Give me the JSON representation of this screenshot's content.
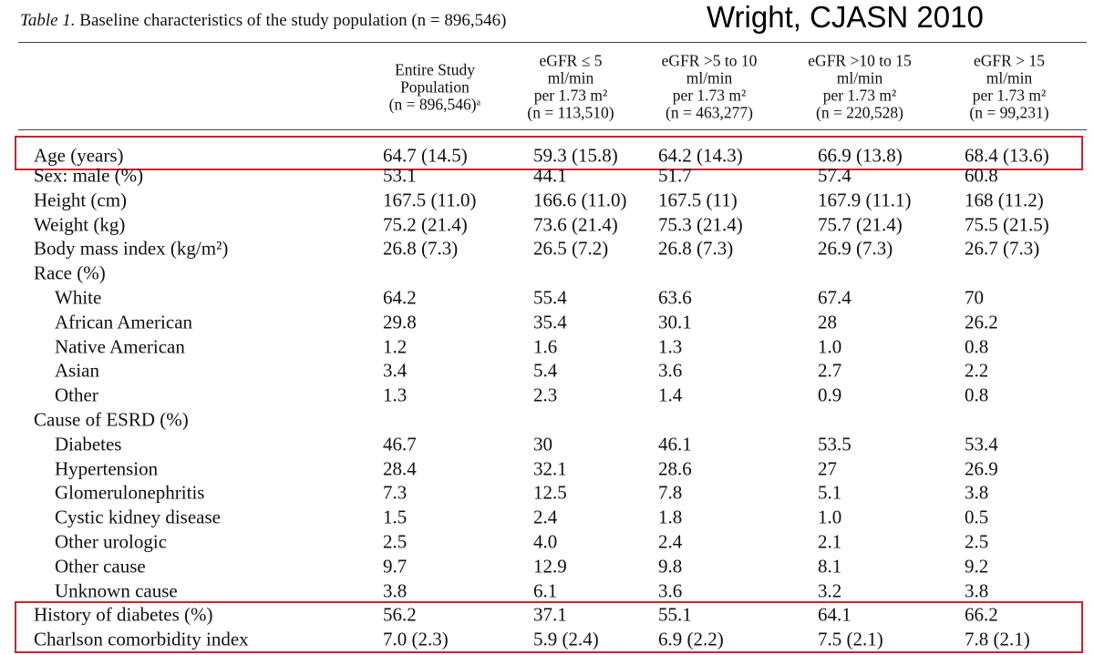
{
  "caption": {
    "label": "Table 1.",
    "text": "Baseline characteristics of the study population (n = 896,546)"
  },
  "attribution": "Wright, CJASN 2010",
  "table": {
    "columns": [
      [
        "Entire Study",
        "Population",
        "(n = 896,546)ᵃ"
      ],
      [
        "eGFR ≤ 5",
        "ml/min",
        "per 1.73 m²",
        "(n = 113,510)"
      ],
      [
        "eGFR >5 to 10",
        "ml/min",
        "per 1.73 m²",
        "(n = 463,277)"
      ],
      [
        "eGFR >10 to 15",
        "ml/min",
        "per 1.73 m²",
        "(n = 220,528)"
      ],
      [
        "eGFR > 15",
        "ml/min",
        "per 1.73 m²",
        "(n = 99,231)"
      ]
    ],
    "rows": [
      {
        "label": "Age (years)",
        "values": [
          "64.7 (14.5)",
          "59.3 (15.8)",
          "64.2 (14.3)",
          "66.9 (13.8)",
          "68.4 (13.6)"
        ]
      },
      {
        "label": "Sex: male (%)",
        "values": [
          "53.1",
          "44.1",
          "51.7",
          "57.4",
          "60.8"
        ]
      },
      {
        "label": "Height (cm)",
        "values": [
          "167.5 (11.0)",
          "166.6 (11.0)",
          "167.5 (11)",
          "167.9 (11.1)",
          "168 (11.2)"
        ]
      },
      {
        "label": "Weight (kg)",
        "values": [
          "75.2 (21.4)",
          "73.6 (21.4)",
          "75.3 (21.4)",
          "75.7 (21.4)",
          "75.5 (21.5)"
        ]
      },
      {
        "label": "Body mass index (kg/m²)",
        "values": [
          "26.8 (7.3)",
          "26.5 (7.2)",
          "26.8 (7.3)",
          "26.9 (7.3)",
          "26.7 (7.3)"
        ]
      },
      {
        "label": "Race (%)",
        "items": [
          {
            "label": "White",
            "values": [
              "64.2",
              "55.4",
              "63.6",
              "67.4",
              "70"
            ]
          },
          {
            "label": "African American",
            "values": [
              "29.8",
              "35.4",
              "30.1",
              "28",
              "26.2"
            ]
          },
          {
            "label": "Native American",
            "values": [
              "1.2",
              "1.6",
              "1.3",
              "1.0",
              "0.8"
            ]
          },
          {
            "label": "Asian",
            "values": [
              "3.4",
              "5.4",
              "3.6",
              "2.7",
              "2.2"
            ]
          },
          {
            "label": "Other",
            "values": [
              "1.3",
              "2.3",
              "1.4",
              "0.9",
              "0.8"
            ]
          }
        ]
      },
      {
        "label": "Cause of ESRD (%)",
        "items": [
          {
            "label": "Diabetes",
            "values": [
              "46.7",
              "30",
              "46.1",
              "53.5",
              "53.4"
            ]
          },
          {
            "label": "Hypertension",
            "values": [
              "28.4",
              "32.1",
              "28.6",
              "27",
              "26.9"
            ]
          },
          {
            "label": "Glomerulonephritis",
            "values": [
              "7.3",
              "12.5",
              "7.8",
              "5.1",
              "3.8"
            ]
          },
          {
            "label": "Cystic kidney disease",
            "values": [
              "1.5",
              "2.4",
              "1.8",
              "1.0",
              "0.5"
            ]
          },
          {
            "label": "Other urologic",
            "values": [
              "2.5",
              "4.0",
              "2.4",
              "2.1",
              "2.5"
            ]
          },
          {
            "label": "Other cause",
            "values": [
              "9.7",
              "12.9",
              "9.8",
              "8.1",
              "9.2"
            ]
          },
          {
            "label": "Unknown cause",
            "values": [
              "3.8",
              "6.1",
              "3.6",
              "3.2",
              "3.8"
            ]
          }
        ]
      },
      {
        "label": "History of diabetes (%)",
        "values": [
          "56.2",
          "37.1",
          "55.1",
          "64.1",
          "66.2"
        ]
      },
      {
        "label": "Charlson comorbidity index",
        "values": [
          "7.0 (2.3)",
          "5.9 (2.4)",
          "6.9 (2.2)",
          "7.5 (2.1)",
          "7.8 (2.1)"
        ]
      }
    ]
  }
}
